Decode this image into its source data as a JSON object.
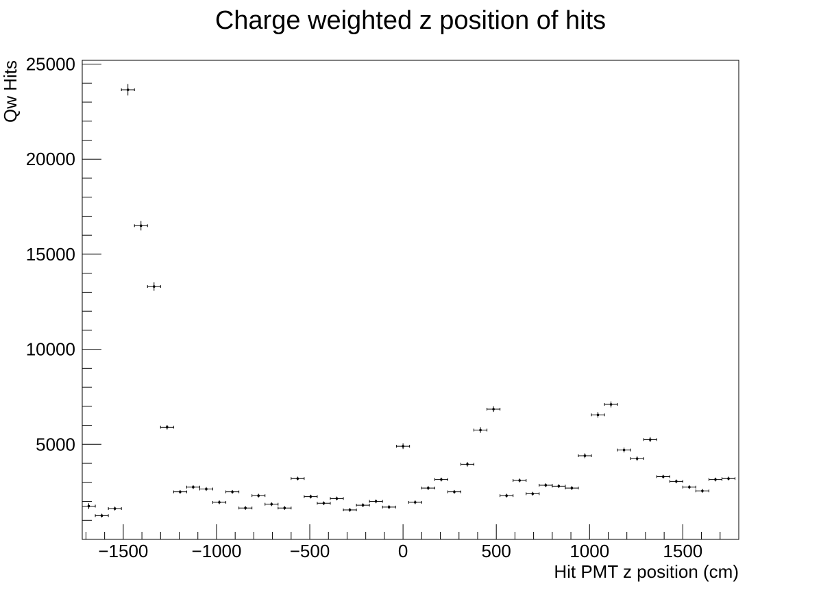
{
  "chart_data": {
    "type": "scatter",
    "title": "Charge weighted z position of hits",
    "xlabel": "Hit PMT z position (cm)",
    "ylabel": "Qw Hits",
    "xlim": [
      -1720,
      1800
    ],
    "ylim": [
      0,
      25200
    ],
    "x_ticks": [
      -1500,
      -1000,
      -500,
      0,
      500,
      1000,
      1500
    ],
    "x_tick_labels": [
      "−1500",
      "−1000",
      "−500",
      "0",
      "500",
      "1000",
      "1500"
    ],
    "y_ticks": [
      5000,
      10000,
      15000,
      20000,
      25000
    ],
    "y_tick_labels": [
      "5000",
      "10000",
      "15000",
      "20000",
      "25000"
    ],
    "grid": false,
    "legend": "none",
    "bin_half_width": 35,
    "points": [
      {
        "x": -1685,
        "y": 1750,
        "err": 150
      },
      {
        "x": -1615,
        "y": 1250,
        "err": 100
      },
      {
        "x": -1545,
        "y": 1620,
        "err": 100
      },
      {
        "x": -1475,
        "y": 23650,
        "err": 300
      },
      {
        "x": -1405,
        "y": 16500,
        "err": 250
      },
      {
        "x": -1335,
        "y": 13300,
        "err": 220
      },
      {
        "x": -1265,
        "y": 5900,
        "err": 120
      },
      {
        "x": -1195,
        "y": 2500,
        "err": 100
      },
      {
        "x": -1125,
        "y": 2750,
        "err": 100
      },
      {
        "x": -1055,
        "y": 2650,
        "err": 100
      },
      {
        "x": -985,
        "y": 1950,
        "err": 100
      },
      {
        "x": -915,
        "y": 2500,
        "err": 100
      },
      {
        "x": -845,
        "y": 1650,
        "err": 100
      },
      {
        "x": -775,
        "y": 2300,
        "err": 100
      },
      {
        "x": -705,
        "y": 1850,
        "err": 100
      },
      {
        "x": -635,
        "y": 1650,
        "err": 100
      },
      {
        "x": -565,
        "y": 3200,
        "err": 100
      },
      {
        "x": -495,
        "y": 2250,
        "err": 100
      },
      {
        "x": -425,
        "y": 1900,
        "err": 100
      },
      {
        "x": -355,
        "y": 2150,
        "err": 100
      },
      {
        "x": -285,
        "y": 1550,
        "err": 100
      },
      {
        "x": -215,
        "y": 1800,
        "err": 100
      },
      {
        "x": -145,
        "y": 2000,
        "err": 100
      },
      {
        "x": -75,
        "y": 1700,
        "err": 100
      },
      {
        "x": 0,
        "y": 4900,
        "err": 150
      },
      {
        "x": 65,
        "y": 1950,
        "err": 100
      },
      {
        "x": 135,
        "y": 2700,
        "err": 100
      },
      {
        "x": 205,
        "y": 3150,
        "err": 100
      },
      {
        "x": 275,
        "y": 2500,
        "err": 100
      },
      {
        "x": 345,
        "y": 3950,
        "err": 120
      },
      {
        "x": 415,
        "y": 5750,
        "err": 150
      },
      {
        "x": 485,
        "y": 6850,
        "err": 150
      },
      {
        "x": 555,
        "y": 2300,
        "err": 100
      },
      {
        "x": 625,
        "y": 3100,
        "err": 100
      },
      {
        "x": 695,
        "y": 2400,
        "err": 100
      },
      {
        "x": 765,
        "y": 2850,
        "err": 100
      },
      {
        "x": 835,
        "y": 2800,
        "err": 100
      },
      {
        "x": 905,
        "y": 2700,
        "err": 100
      },
      {
        "x": 975,
        "y": 4400,
        "err": 130
      },
      {
        "x": 1045,
        "y": 6550,
        "err": 150
      },
      {
        "x": 1115,
        "y": 7100,
        "err": 160
      },
      {
        "x": 1185,
        "y": 4700,
        "err": 130
      },
      {
        "x": 1255,
        "y": 4250,
        "err": 120
      },
      {
        "x": 1325,
        "y": 5250,
        "err": 130
      },
      {
        "x": 1395,
        "y": 3300,
        "err": 100
      },
      {
        "x": 1465,
        "y": 3050,
        "err": 100
      },
      {
        "x": 1535,
        "y": 2750,
        "err": 100
      },
      {
        "x": 1605,
        "y": 2550,
        "err": 100
      },
      {
        "x": 1675,
        "y": 3150,
        "err": 100
      },
      {
        "x": 1745,
        "y": 3200,
        "err": 100
      }
    ]
  }
}
